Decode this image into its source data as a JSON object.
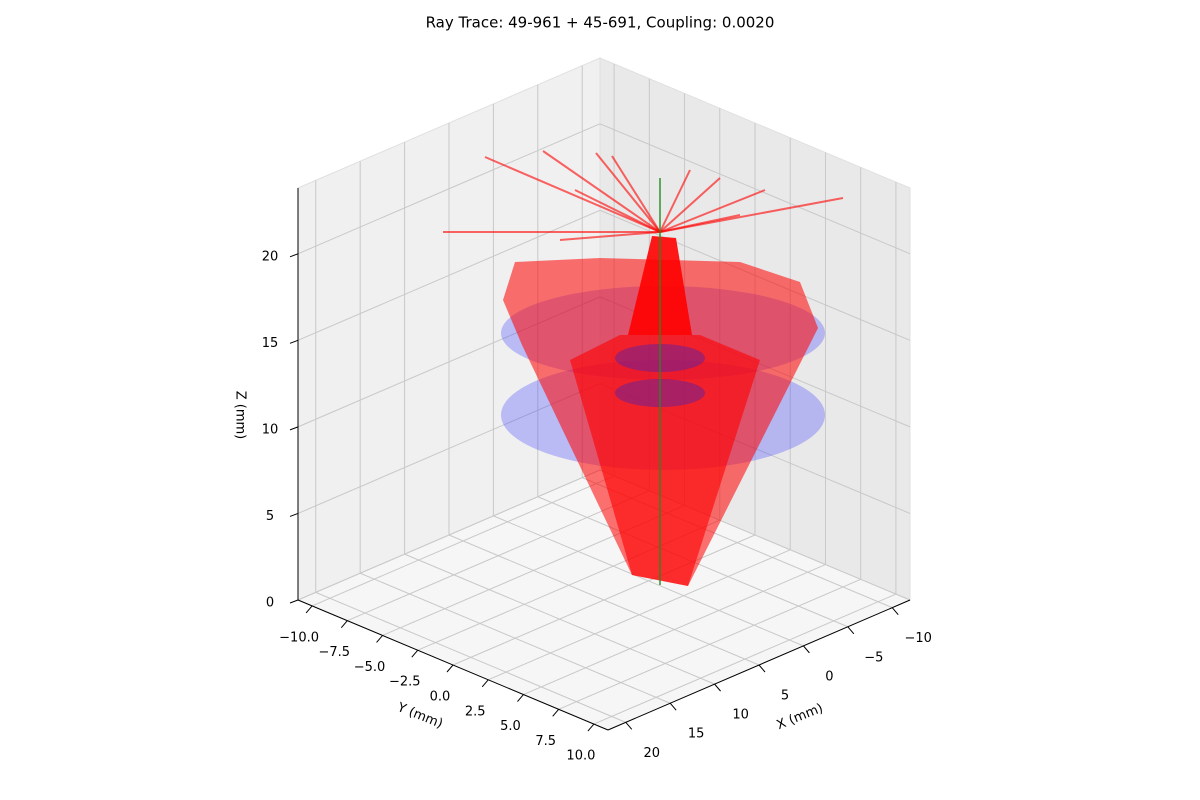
{
  "chart_data": {
    "type": "ray-trace-3d",
    "title": "Ray Trace: 49-961 + 45-691, Coupling: 0.0020",
    "xlabel": "X (mm)",
    "ylabel": "Y (mm)",
    "zlabel": "Z (mm)",
    "xlim": [
      -12,
      22
    ],
    "ylim": [
      -11,
      11
    ],
    "zlim": [
      0,
      23.8
    ],
    "xticks": [
      {
        "value": -10,
        "label": "−10"
      },
      {
        "value": -5,
        "label": "−5"
      },
      0,
      5,
      10,
      15,
      20
    ],
    "yticks": [
      {
        "value": -10,
        "label": "−10.0"
      },
      {
        "value": -7.5,
        "label": "−7.5"
      },
      {
        "value": -5,
        "label": "−5.0"
      },
      {
        "value": -2.5,
        "label": "−2.5"
      },
      {
        "value": 0,
        "label": "0.0"
      },
      {
        "value": 2.5,
        "label": "2.5"
      },
      {
        "value": 5,
        "label": "5.0"
      },
      {
        "value": 7.5,
        "label": "7.5"
      },
      {
        "value": 10,
        "label": "10.0"
      }
    ],
    "zticks": [
      0,
      5,
      10,
      15,
      20
    ],
    "grid": true
  }
}
